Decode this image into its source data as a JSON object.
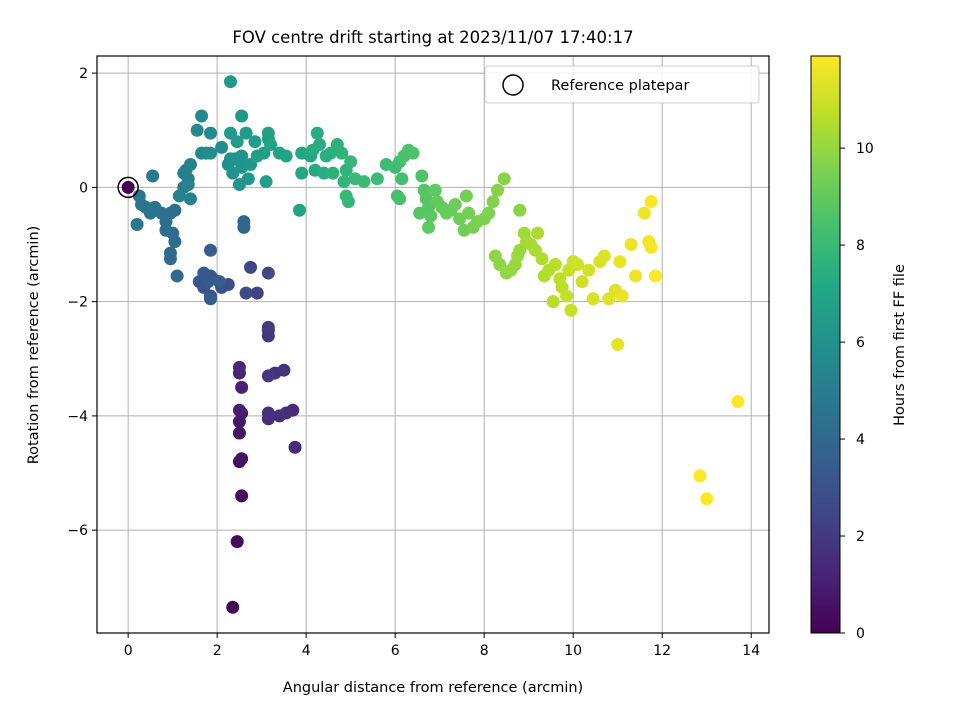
{
  "chart_data": {
    "type": "scatter",
    "title": "FOV centre drift starting at 2023/11/07 17:40:17",
    "xlabel": "Angular distance from reference (arcmin)",
    "ylabel": "Rotation from reference (arcmin)",
    "xlim": [
      -0.7,
      14.4
    ],
    "ylim": [
      -7.8,
      2.3
    ],
    "xticks": [
      0,
      2,
      4,
      6,
      8,
      10,
      12,
      14
    ],
    "yticks": [
      2,
      0,
      -2,
      -4,
      -6
    ],
    "grid": true,
    "legend": {
      "placement": "top-right",
      "entries": [
        "Reference platepar"
      ]
    },
    "colorbar": {
      "label": "Hours from first FF file",
      "range": [
        0,
        11.9
      ],
      "ticks": [
        0,
        2,
        4,
        6,
        8,
        10
      ],
      "colormap": "viridis"
    },
    "reference": {
      "x": 0,
      "y": 0
    },
    "points": [
      [
        0.0,
        0.0,
        0.0
      ],
      [
        2.35,
        -7.35,
        0.2
      ],
      [
        2.45,
        -6.2,
        0.3
      ],
      [
        2.55,
        -5.4,
        0.4
      ],
      [
        2.5,
        -4.8,
        0.5
      ],
      [
        2.55,
        -4.75,
        0.6
      ],
      [
        2.5,
        -4.3,
        0.7
      ],
      [
        2.5,
        -4.1,
        0.8
      ],
      [
        2.55,
        -3.95,
        0.9
      ],
      [
        2.5,
        -3.9,
        1.0
      ],
      [
        2.55,
        -3.5,
        1.1
      ],
      [
        2.5,
        -3.25,
        1.2
      ],
      [
        2.5,
        -3.15,
        1.3
      ],
      [
        3.75,
        -4.55,
        1.4
      ],
      [
        3.7,
        -3.9,
        1.5
      ],
      [
        3.55,
        -3.95,
        1.55
      ],
      [
        3.4,
        -4.0,
        1.6
      ],
      [
        3.15,
        -4.05,
        1.65
      ],
      [
        3.15,
        -3.95,
        1.7
      ],
      [
        3.5,
        -3.2,
        1.75
      ],
      [
        3.3,
        -3.25,
        1.8
      ],
      [
        3.15,
        -3.3,
        1.85
      ],
      [
        3.15,
        -2.6,
        1.9
      ],
      [
        3.15,
        -2.5,
        1.95
      ],
      [
        3.15,
        -2.45,
        2.0
      ],
      [
        2.9,
        -1.85,
        2.3
      ],
      [
        2.75,
        -1.4,
        2.5
      ],
      [
        3.15,
        -1.5,
        2.6
      ],
      [
        2.65,
        -1.85,
        2.7
      ],
      [
        2.25,
        -1.7,
        2.8
      ],
      [
        2.1,
        -1.75,
        2.9
      ],
      [
        1.9,
        -1.6,
        3.0
      ],
      [
        1.85,
        -1.9,
        3.05
      ],
      [
        1.7,
        -1.75,
        3.1
      ],
      [
        1.6,
        -1.65,
        3.15
      ],
      [
        1.85,
        -1.55,
        3.2
      ],
      [
        1.7,
        -1.5,
        3.3
      ],
      [
        1.8,
        -1.65,
        3.35
      ],
      [
        1.85,
        -1.95,
        3.4
      ],
      [
        2.05,
        -1.65,
        3.45
      ],
      [
        1.85,
        -1.1,
        3.5
      ],
      [
        2.6,
        -0.6,
        3.8
      ],
      [
        2.6,
        -0.7,
        3.9
      ],
      [
        1.1,
        -1.55,
        4.0
      ],
      [
        0.95,
        -1.15,
        4.05
      ],
      [
        0.95,
        -1.25,
        4.1
      ],
      [
        1.05,
        -0.95,
        4.15
      ],
      [
        1.0,
        -0.8,
        4.2
      ],
      [
        1.05,
        -0.4,
        4.25
      ],
      [
        0.95,
        -0.45,
        4.3
      ],
      [
        0.85,
        -0.75,
        4.35
      ],
      [
        0.85,
        -0.6,
        4.4
      ],
      [
        0.75,
        -0.45,
        4.45
      ],
      [
        0.6,
        -0.35,
        4.5
      ],
      [
        0.5,
        -0.45,
        4.55
      ],
      [
        0.4,
        -0.35,
        4.6
      ],
      [
        0.3,
        -0.3,
        4.65
      ],
      [
        0.25,
        -0.15,
        4.7
      ],
      [
        0.2,
        -0.65,
        4.75
      ],
      [
        0.55,
        0.2,
        4.8
      ],
      [
        1.25,
        0.0,
        4.9
      ],
      [
        1.4,
        -0.2,
        5.0
      ],
      [
        1.35,
        0.15,
        5.05
      ],
      [
        1.4,
        0.4,
        5.1
      ],
      [
        1.3,
        0.3,
        5.15
      ],
      [
        1.25,
        0.25,
        5.2
      ],
      [
        1.35,
        0.05,
        5.25
      ],
      [
        1.15,
        -0.15,
        5.3
      ],
      [
        1.55,
        1.0,
        5.5
      ],
      [
        1.65,
        1.25,
        5.55
      ],
      [
        1.75,
        0.6,
        5.6
      ],
      [
        1.65,
        0.6,
        5.65
      ],
      [
        1.85,
        0.95,
        5.7
      ],
      [
        1.85,
        0.6,
        5.75
      ],
      [
        2.1,
        0.7,
        5.8
      ],
      [
        2.25,
        0.4,
        5.85
      ],
      [
        2.3,
        0.5,
        5.9
      ],
      [
        2.4,
        0.5,
        5.95
      ],
      [
        2.35,
        0.25,
        6.0
      ],
      [
        2.55,
        0.55,
        6.05
      ],
      [
        2.55,
        0.35,
        6.1
      ],
      [
        2.5,
        0.05,
        6.15
      ],
      [
        2.7,
        0.15,
        6.2
      ],
      [
        2.75,
        0.4,
        6.25
      ],
      [
        2.3,
        1.85,
        6.3
      ],
      [
        2.55,
        1.25,
        6.35
      ],
      [
        2.65,
        0.95,
        6.4
      ],
      [
        2.3,
        0.95,
        6.45
      ],
      [
        2.45,
        0.8,
        6.5
      ],
      [
        2.85,
        0.8,
        6.55
      ],
      [
        2.9,
        0.55,
        6.6
      ],
      [
        3.1,
        0.1,
        6.65
      ],
      [
        3.05,
        0.6,
        6.7
      ],
      [
        3.15,
        0.85,
        6.75
      ],
      [
        3.15,
        0.95,
        6.8
      ],
      [
        3.2,
        0.75,
        6.85
      ],
      [
        3.4,
        0.6,
        6.9
      ],
      [
        3.55,
        0.55,
        6.95
      ],
      [
        3.85,
        -0.4,
        7.0
      ],
      [
        3.9,
        0.25,
        7.05
      ],
      [
        3.9,
        0.6,
        7.1
      ],
      [
        4.1,
        0.55,
        7.15
      ],
      [
        4.2,
        0.3,
        7.2
      ],
      [
        4.15,
        0.65,
        7.25
      ],
      [
        4.25,
        0.95,
        7.3
      ],
      [
        4.3,
        0.75,
        7.35
      ],
      [
        4.4,
        0.25,
        7.4
      ],
      [
        4.45,
        0.55,
        7.45
      ],
      [
        4.55,
        0.6,
        7.5
      ],
      [
        4.6,
        0.25,
        7.55
      ],
      [
        4.7,
        0.75,
        7.6
      ],
      [
        4.8,
        0.6,
        7.65
      ],
      [
        4.9,
        0.3,
        7.7
      ],
      [
        4.85,
        0.1,
        7.75
      ],
      [
        5.0,
        0.45,
        7.8
      ],
      [
        4.95,
        -0.25,
        7.85
      ],
      [
        4.9,
        -0.15,
        7.9
      ],
      [
        5.1,
        0.15,
        7.95
      ],
      [
        5.3,
        0.1,
        8.0
      ],
      [
        5.6,
        0.15,
        8.1
      ],
      [
        5.8,
        0.4,
        8.15
      ],
      [
        6.0,
        0.35,
        8.2
      ],
      [
        6.1,
        0.45,
        8.25
      ],
      [
        6.15,
        0.15,
        8.3
      ],
      [
        6.05,
        -0.15,
        8.35
      ],
      [
        6.1,
        -0.2,
        8.4
      ],
      [
        6.2,
        0.55,
        8.45
      ],
      [
        6.3,
        0.65,
        8.5
      ],
      [
        6.4,
        0.6,
        8.55
      ],
      [
        6.6,
        0.2,
        8.6
      ],
      [
        6.65,
        -0.05,
        8.65
      ],
      [
        6.55,
        -0.45,
        8.7
      ],
      [
        6.7,
        -0.2,
        8.75
      ],
      [
        6.75,
        -0.35,
        8.8
      ],
      [
        6.8,
        -0.5,
        8.85
      ],
      [
        6.75,
        -0.7,
        8.9
      ],
      [
        6.9,
        -0.05,
        8.95
      ],
      [
        6.95,
        -0.25,
        9.0
      ],
      [
        7.05,
        -0.35,
        9.05
      ],
      [
        7.15,
        -0.45,
        9.1
      ],
      [
        7.25,
        -0.4,
        9.15
      ],
      [
        7.35,
        -0.3,
        9.2
      ],
      [
        7.45,
        -0.55,
        9.25
      ],
      [
        7.55,
        -0.75,
        9.3
      ],
      [
        7.6,
        -0.15,
        9.35
      ],
      [
        7.65,
        -0.45,
        9.4
      ],
      [
        7.75,
        -0.7,
        9.45
      ],
      [
        7.85,
        -0.6,
        9.5
      ],
      [
        8.0,
        -0.55,
        9.55
      ],
      [
        8.1,
        -0.45,
        9.6
      ],
      [
        8.2,
        -0.25,
        9.65
      ],
      [
        8.3,
        -0.05,
        9.7
      ],
      [
        8.45,
        0.15,
        9.75
      ],
      [
        8.8,
        -0.4,
        9.8
      ],
      [
        8.25,
        -1.2,
        9.85
      ],
      [
        8.35,
        -1.35,
        9.9
      ],
      [
        8.5,
        -1.5,
        9.95
      ],
      [
        8.6,
        -1.45,
        10.0
      ],
      [
        8.7,
        -1.35,
        10.05
      ],
      [
        8.75,
        -1.2,
        10.1
      ],
      [
        8.8,
        -1.1,
        10.15
      ],
      [
        8.9,
        -0.8,
        10.2
      ],
      [
        8.95,
        -0.95,
        10.25
      ],
      [
        9.05,
        -1.0,
        10.3
      ],
      [
        9.15,
        -1.1,
        10.35
      ],
      [
        9.2,
        -0.8,
        10.4
      ],
      [
        9.3,
        -1.25,
        10.45
      ],
      [
        9.35,
        -1.55,
        10.5
      ],
      [
        9.45,
        -1.45,
        10.55
      ],
      [
        9.55,
        -2.0,
        10.6
      ],
      [
        9.6,
        -1.35,
        10.65
      ],
      [
        9.7,
        -1.6,
        10.7
      ],
      [
        9.75,
        -1.75,
        10.75
      ],
      [
        9.85,
        -1.9,
        10.8
      ],
      [
        9.95,
        -2.15,
        10.85
      ],
      [
        9.9,
        -1.45,
        10.9
      ],
      [
        10.0,
        -1.3,
        10.95
      ],
      [
        10.1,
        -1.35,
        11.0
      ],
      [
        10.2,
        -1.65,
        11.05
      ],
      [
        10.35,
        -1.45,
        11.1
      ],
      [
        10.45,
        -1.95,
        11.15
      ],
      [
        10.6,
        -1.3,
        11.2
      ],
      [
        10.7,
        -1.2,
        11.25
      ],
      [
        10.8,
        -1.95,
        11.3
      ],
      [
        10.95,
        -1.8,
        11.35
      ],
      [
        11.0,
        -2.75,
        11.4
      ],
      [
        11.05,
        -1.3,
        11.45
      ],
      [
        11.1,
        -1.9,
        11.5
      ],
      [
        11.3,
        -1.0,
        11.55
      ],
      [
        11.4,
        -1.55,
        11.6
      ],
      [
        11.6,
        -0.45,
        11.65
      ],
      [
        11.7,
        -0.95,
        11.7
      ],
      [
        11.75,
        -1.05,
        11.75
      ],
      [
        11.75,
        -0.25,
        11.8
      ],
      [
        11.85,
        -1.55,
        11.85
      ],
      [
        12.85,
        -5.05,
        11.9
      ],
      [
        13.0,
        -5.45,
        11.9
      ],
      [
        13.7,
        -3.75,
        11.9
      ]
    ]
  }
}
